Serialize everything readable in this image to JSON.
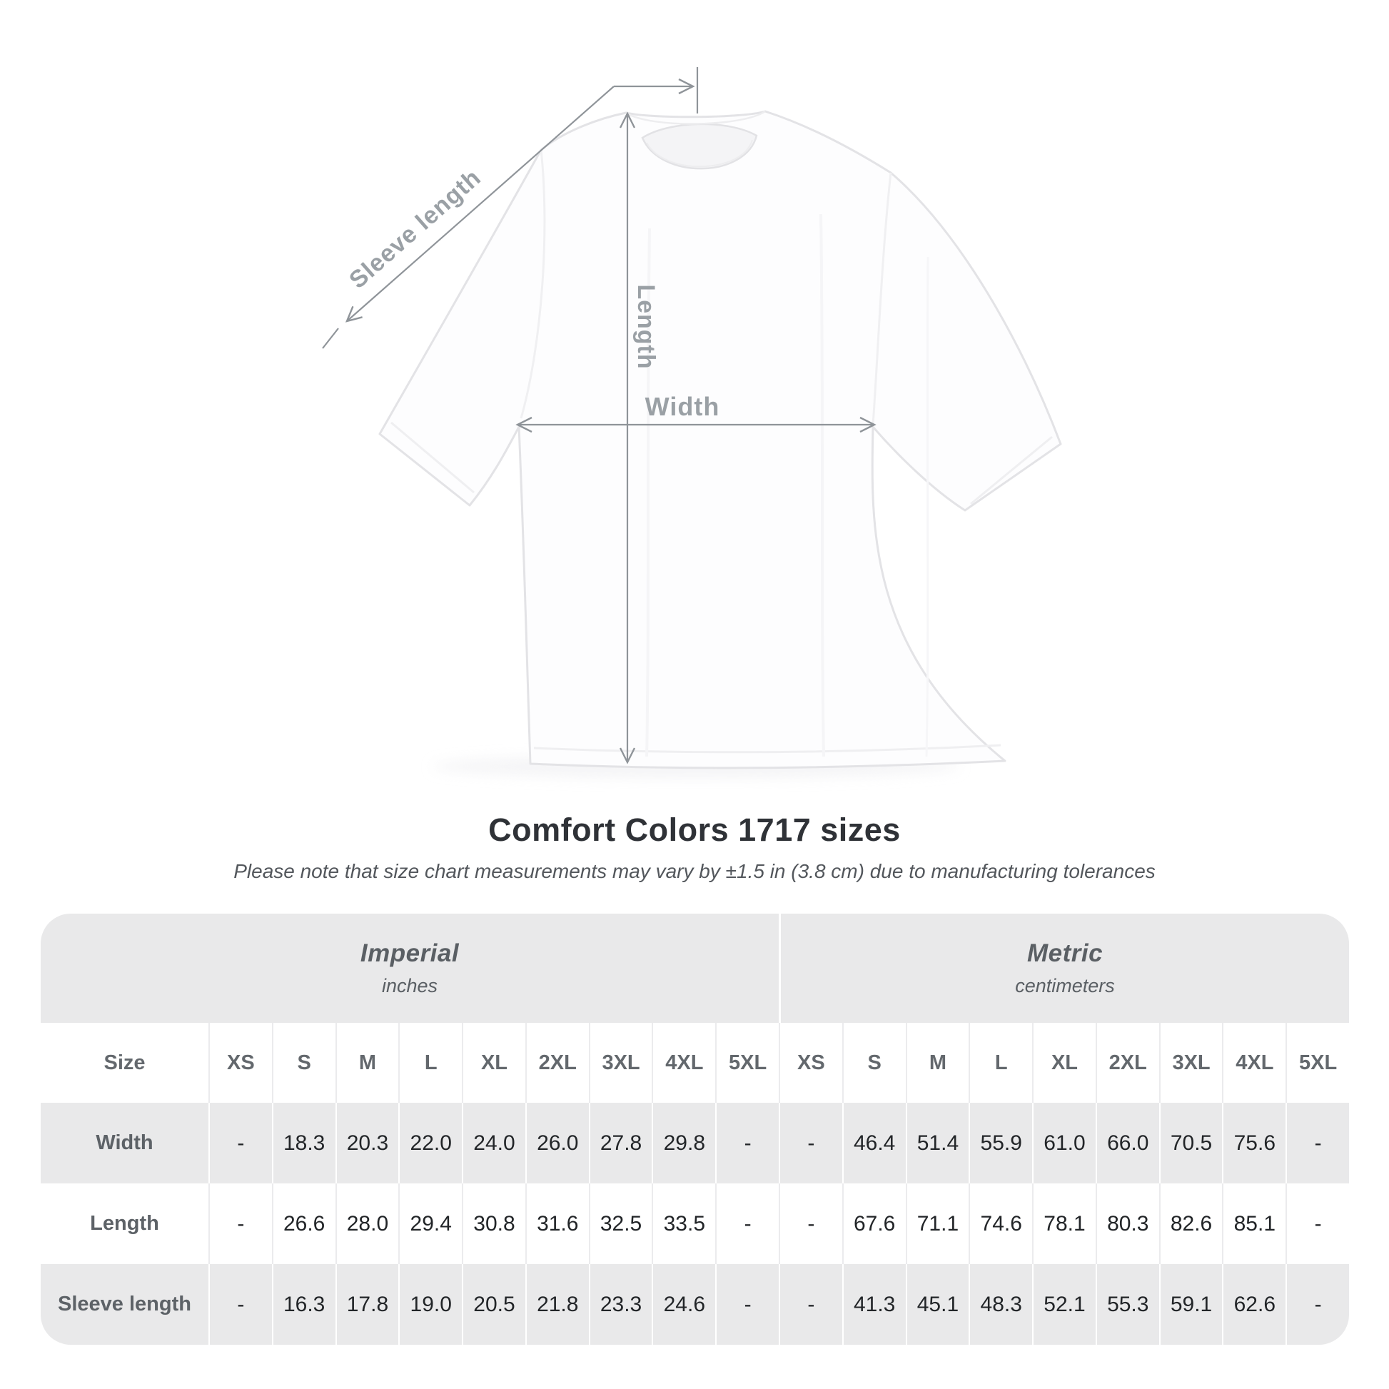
{
  "colors": {
    "background": "#ffffff",
    "table_band_gray": "#e9e9ea",
    "arrow_gray": "#8f9499",
    "diagram_label_gray": "#9aa0a5",
    "value_text": "#222528",
    "title_text": "#2f3237",
    "subtitle_text": "#53575c"
  },
  "diagram": {
    "sleeve_label": "Sleeve length",
    "length_label": "Length",
    "width_label": "Width"
  },
  "heading": {
    "title": "Comfort Colors 1717 sizes",
    "subtitle": "Please note that size chart measurements may vary by ±1.5 in (3.8 cm) due to manufacturing tolerances"
  },
  "table": {
    "imperial_header": {
      "name": "Imperial",
      "unit": "inches"
    },
    "metric_header": {
      "name": "Metric",
      "unit": "centimeters"
    },
    "size_label": "Size",
    "sizes": [
      "XS",
      "S",
      "M",
      "L",
      "XL",
      "2XL",
      "3XL",
      "4XL",
      "5XL"
    ],
    "rows": [
      {
        "label": "Width",
        "imperial": [
          "-",
          "18.3",
          "20.3",
          "22.0",
          "24.0",
          "26.0",
          "27.8",
          "29.8",
          "-"
        ],
        "metric": [
          "-",
          "46.4",
          "51.4",
          "55.9",
          "61.0",
          "66.0",
          "70.5",
          "75.6",
          "-"
        ]
      },
      {
        "label": "Length",
        "imperial": [
          "-",
          "26.6",
          "28.0",
          "29.4",
          "30.8",
          "31.6",
          "32.5",
          "33.5",
          "-"
        ],
        "metric": [
          "-",
          "67.6",
          "71.1",
          "74.6",
          "78.1",
          "80.3",
          "82.6",
          "85.1",
          "-"
        ]
      },
      {
        "label": "Sleeve length",
        "imperial": [
          "-",
          "16.3",
          "17.8",
          "19.0",
          "20.5",
          "21.8",
          "23.3",
          "24.6",
          "-"
        ],
        "metric": [
          "-",
          "41.3",
          "45.1",
          "48.3",
          "52.1",
          "55.3",
          "59.1",
          "62.6",
          "-"
        ]
      }
    ]
  },
  "chart_data": {
    "type": "table",
    "title": "Comfort Colors 1717 sizes",
    "note": "Please note that size chart measurements may vary by ±1.5 in (3.8 cm) due to manufacturing tolerances",
    "column_groups": [
      {
        "name": "Imperial",
        "unit": "inches"
      },
      {
        "name": "Metric",
        "unit": "centimeters"
      }
    ],
    "sizes": [
      "XS",
      "S",
      "M",
      "L",
      "XL",
      "2XL",
      "3XL",
      "4XL",
      "5XL"
    ],
    "measurements": [
      {
        "measurement": "Width",
        "imperial_inches": [
          "-",
          18.3,
          20.3,
          22.0,
          24.0,
          26.0,
          27.8,
          29.8,
          "-"
        ],
        "metric_cm": [
          "-",
          46.4,
          51.4,
          55.9,
          61.0,
          66.0,
          70.5,
          75.6,
          "-"
        ]
      },
      {
        "measurement": "Length",
        "imperial_inches": [
          "-",
          26.6,
          28.0,
          29.4,
          30.8,
          31.6,
          32.5,
          33.5,
          "-"
        ],
        "metric_cm": [
          "-",
          67.6,
          71.1,
          74.6,
          78.1,
          80.3,
          82.6,
          85.1,
          "-"
        ]
      },
      {
        "measurement": "Sleeve length",
        "imperial_inches": [
          "-",
          16.3,
          17.8,
          19.0,
          20.5,
          21.8,
          23.3,
          24.6,
          "-"
        ],
        "metric_cm": [
          "-",
          41.3,
          45.1,
          48.3,
          52.1,
          55.3,
          59.1,
          62.6,
          "-"
        ]
      }
    ]
  }
}
